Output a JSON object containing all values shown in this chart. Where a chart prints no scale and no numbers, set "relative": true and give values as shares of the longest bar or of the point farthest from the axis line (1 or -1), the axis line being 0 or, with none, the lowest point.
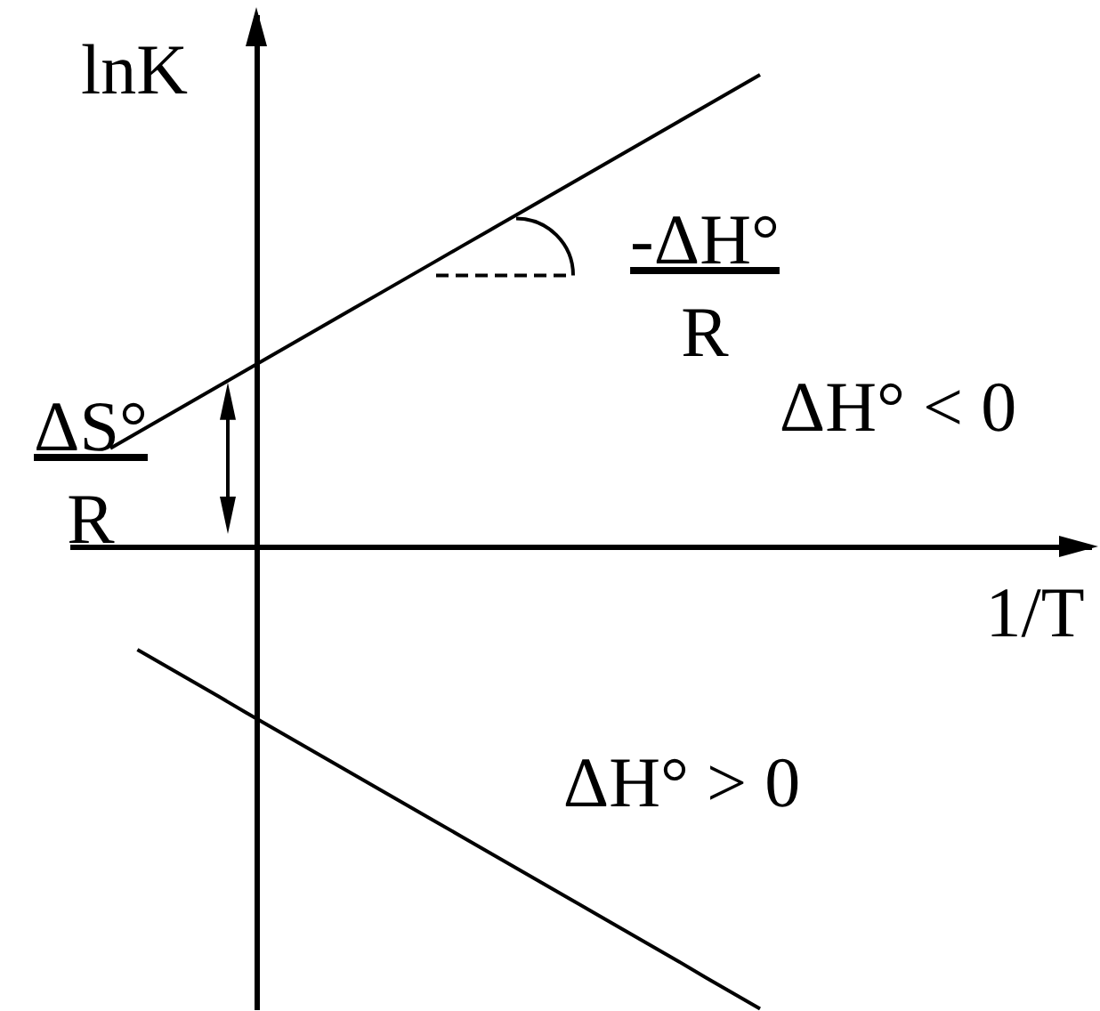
{
  "chart_data": {
    "type": "line",
    "relative": true,
    "ylabel": "lnK",
    "xlabel": "1/T",
    "line_style": "solid",
    "categories": [
      null,
      null,
      null,
      null,
      null,
      null,
      null,
      null,
      null,
      null,
      null,
      null,
      null,
      null,
      null,
      null,
      null,
      null,
      null,
      null,
      null,
      null,
      null,
      null,
      null
    ],
    "series": [
      {
        "color": "#000000",
        "values": [
          0.208,
          0.241,
          0.274,
          0.307,
          0.34,
          0.373,
          0.406,
          0.439,
          0.472,
          0.505,
          0.538,
          0.571,
          0.604,
          0.637,
          0.67,
          0.703,
          0.736,
          0.769,
          0.802,
          0.835,
          0.868,
          0.901,
          0.934,
          0.967,
          1
        ]
      },
      {
        "color": "#000000",
        "values": [
          null,
          -0.219,
          -0.252,
          -0.285,
          -0.318,
          -0.352,
          -0.385,
          -0.418,
          -0.451,
          -0.484,
          -0.517,
          -0.55,
          -0.583,
          -0.616,
          -0.649,
          -0.682,
          -0.715,
          -0.748,
          -0.781,
          -0.814,
          -0.847,
          -0.88,
          -0.914,
          -0.947,
          -0.98
        ]
      }
    ],
    "annotations": [
      "-ΔH°\nR",
      "ΔH° < 0",
      "ΔS°\nR",
      "ΔH° > 0"
    ]
  }
}
